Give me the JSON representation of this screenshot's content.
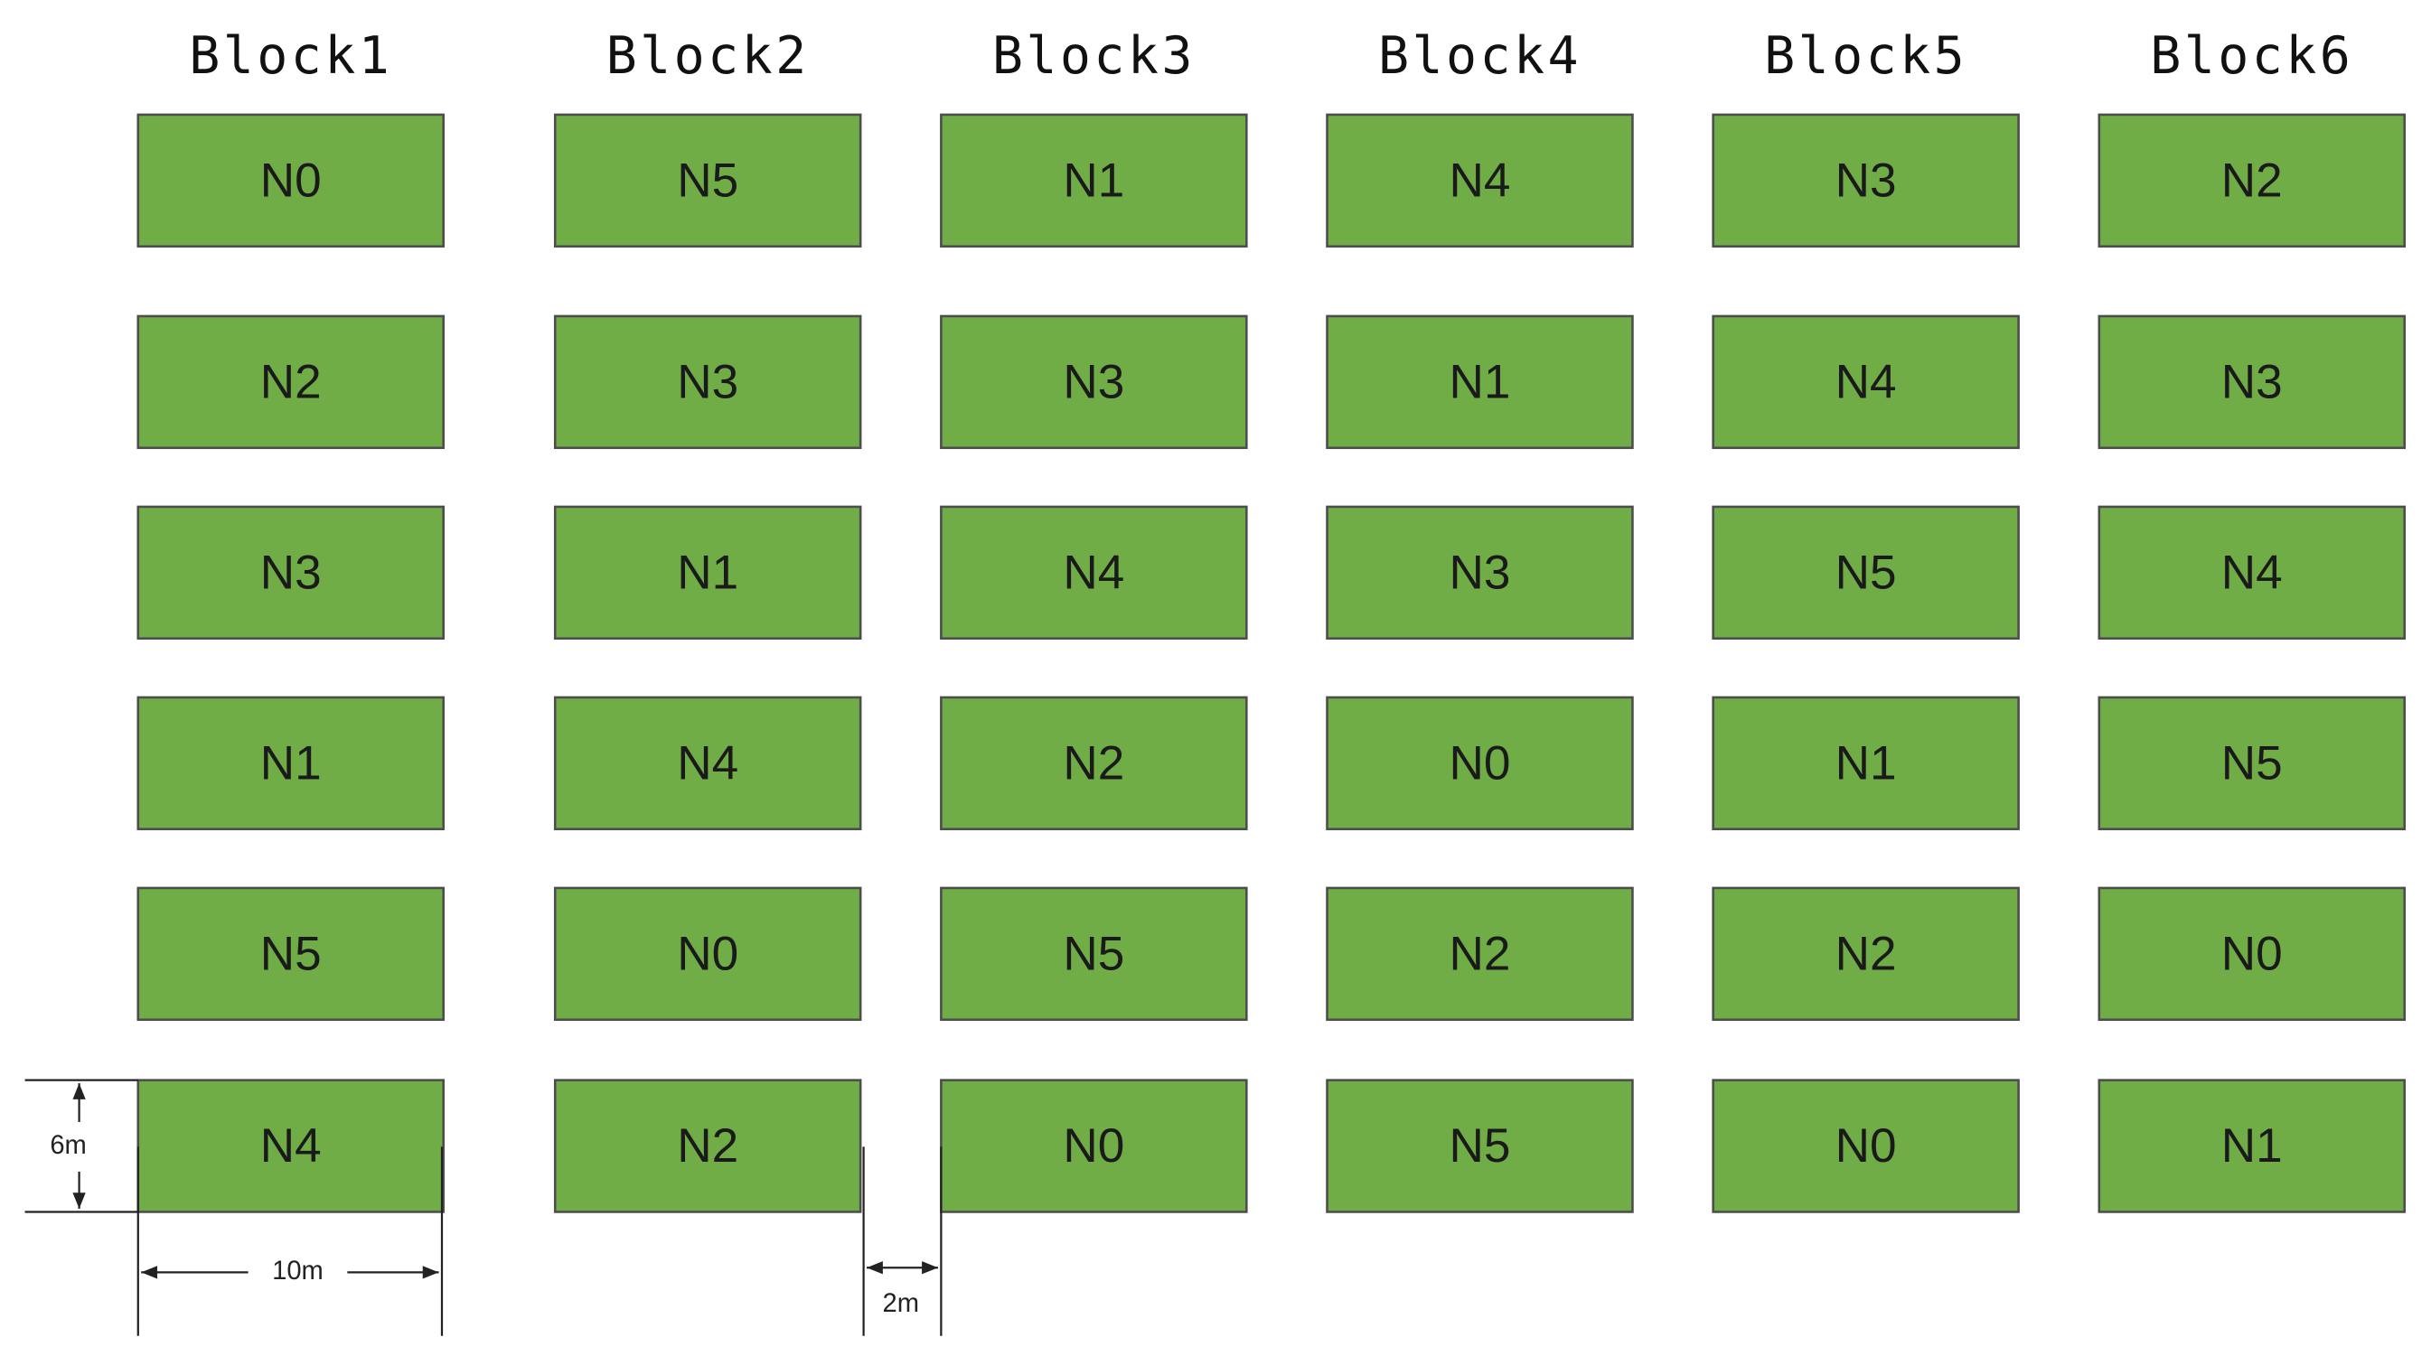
{
  "blocks": [
    {
      "title": "Block1",
      "plots": [
        "N0",
        "N2",
        "N3",
        "N1",
        "N5",
        "N4"
      ]
    },
    {
      "title": "Block2",
      "plots": [
        "N5",
        "N3",
        "N1",
        "N4",
        "N0",
        "N2"
      ]
    },
    {
      "title": "Block3",
      "plots": [
        "N1",
        "N3",
        "N4",
        "N2",
        "N5",
        "N0"
      ]
    },
    {
      "title": "Block4",
      "plots": [
        "N4",
        "N1",
        "N3",
        "N0",
        "N2",
        "N5"
      ]
    },
    {
      "title": "Block5",
      "plots": [
        "N3",
        "N4",
        "N5",
        "N1",
        "N2",
        "N0"
      ]
    },
    {
      "title": "Block6",
      "plots": [
        "N2",
        "N3",
        "N4",
        "N5",
        "N0",
        "N1"
      ]
    }
  ],
  "dimensions": {
    "height": "6m",
    "width": "10m",
    "gap": "2m"
  }
}
